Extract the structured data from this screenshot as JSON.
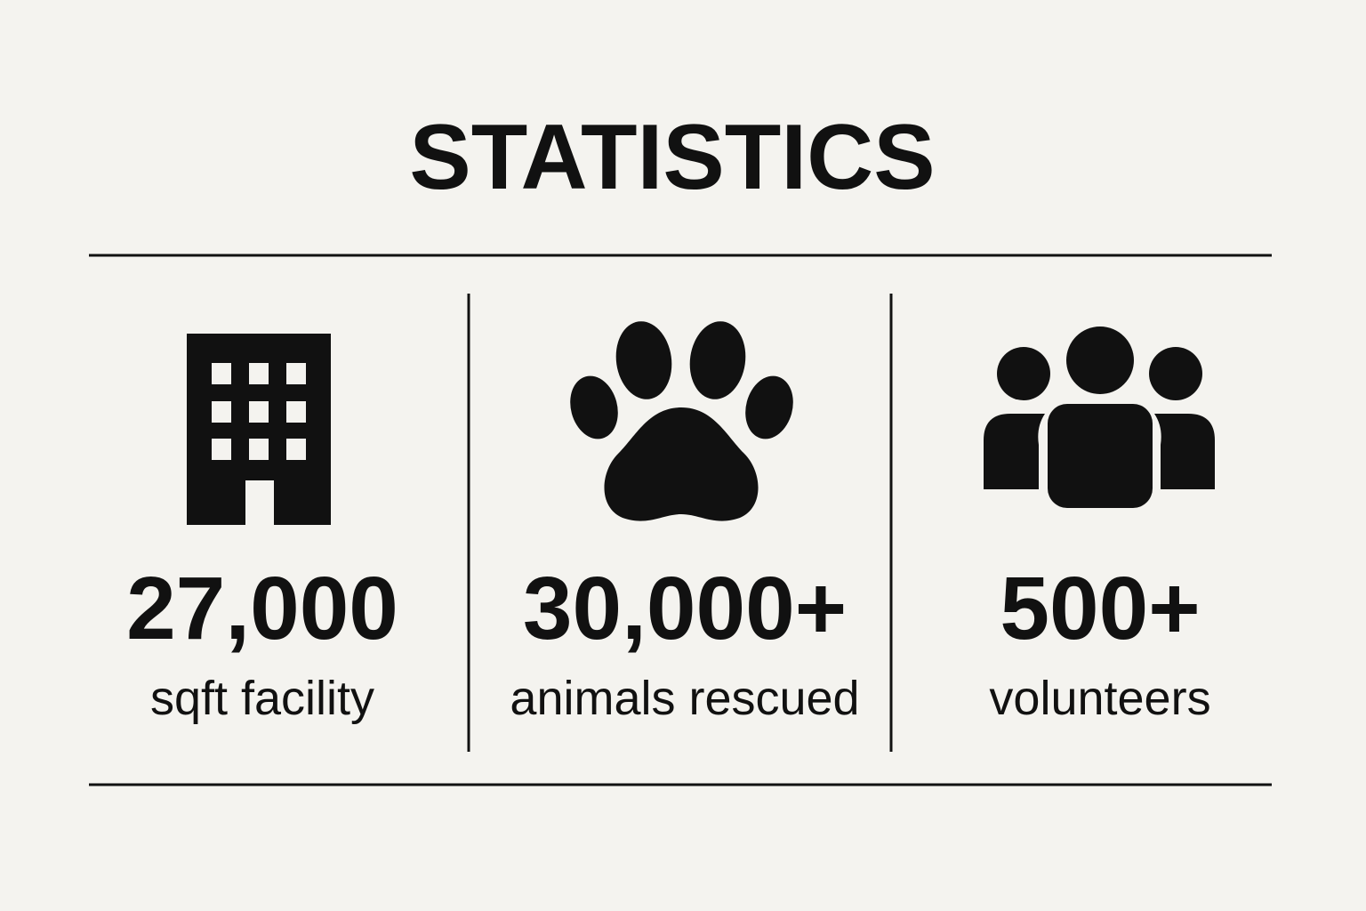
{
  "title": "STATISTICS",
  "stats": [
    {
      "value": "27,000",
      "label": "sqft facility"
    },
    {
      "value": "30,000+",
      "label": "animals rescued"
    },
    {
      "value": "500+",
      "label": "volunteers"
    }
  ]
}
